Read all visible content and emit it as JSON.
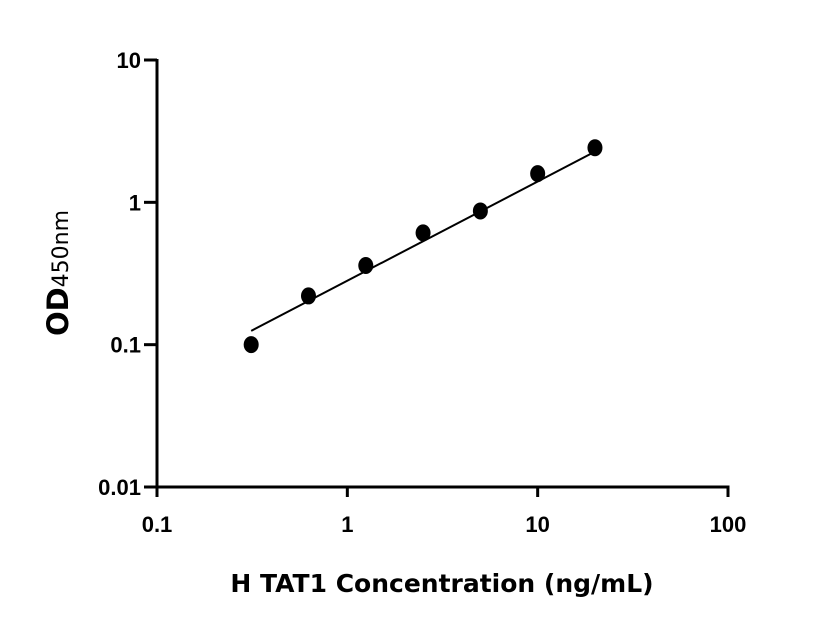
{
  "chart_data": {
    "type": "scatter",
    "title": "",
    "xlabel": "H TAT1 Concentration (ng/mL)",
    "ylabel_main": "OD",
    "ylabel_sub": "450nm",
    "x_scale": "log",
    "y_scale": "log",
    "xlim": [
      0.1,
      100
    ],
    "ylim": [
      0.01,
      10
    ],
    "x_ticks": [
      0.1,
      1,
      10,
      100
    ],
    "x_tick_labels": [
      "0.1",
      "1",
      "10",
      "100"
    ],
    "y_ticks": [
      0.01,
      0.1,
      1,
      10
    ],
    "y_tick_labels": [
      "0.01",
      "0.1",
      "1",
      "10"
    ],
    "grid": false,
    "points": {
      "x": [
        0.3125,
        0.625,
        1.25,
        2.5,
        5,
        10,
        20
      ],
      "y": [
        0.1,
        0.22,
        0.36,
        0.61,
        0.87,
        1.59,
        2.42
      ]
    },
    "fit_line": {
      "x": [
        0.3125,
        20
      ],
      "y": [
        0.125,
        2.27
      ]
    },
    "colors": {
      "marker": "#000000",
      "line": "#000000",
      "axis": "#000000"
    }
  }
}
